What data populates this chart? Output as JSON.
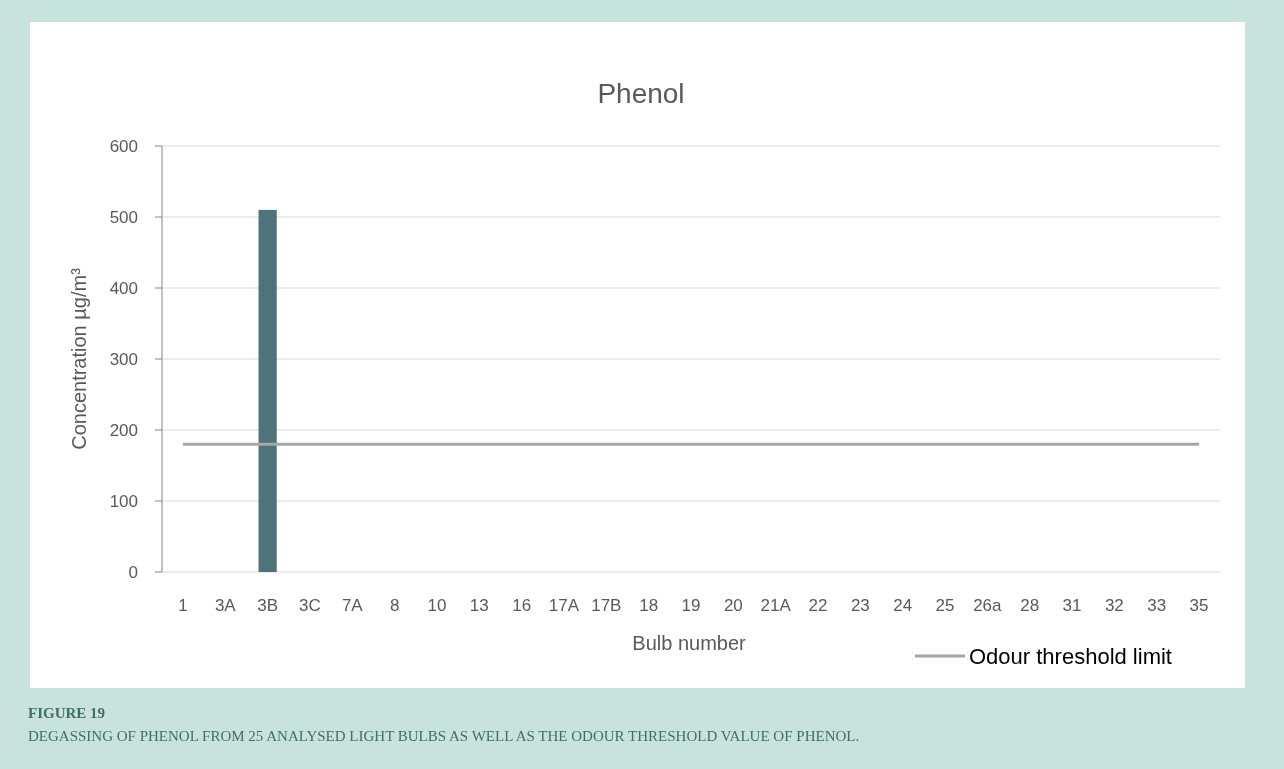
{
  "chart_data": {
    "type": "bar",
    "title": "Phenol",
    "xlabel": "Bulb number",
    "ylabel": "Concentration µg/m³",
    "categories": [
      "1",
      "3A",
      "3B",
      "3C",
      "7A",
      "8",
      "10",
      "13",
      "16",
      "17A",
      "17B",
      "18",
      "19",
      "20",
      "21A",
      "22",
      "23",
      "24",
      "25",
      "26a",
      "28",
      "31",
      "32",
      "33",
      "35"
    ],
    "series": [
      {
        "color": "#4e737a",
        "values": [
          null,
          null,
          510,
          null,
          null,
          null,
          null,
          null,
          null,
          null,
          null,
          null,
          null,
          null,
          null,
          null,
          null,
          null,
          null,
          null,
          null,
          null,
          null,
          null,
          null
        ]
      },
      {
        "type": "line",
        "name": "Odour threshold limit",
        "color": "#a6a6a6",
        "values": [
          180,
          180,
          180,
          180,
          180,
          180,
          180,
          180,
          180,
          180,
          180,
          180,
          180,
          180,
          180,
          180,
          180,
          180,
          180,
          180,
          180,
          180,
          180,
          180,
          180
        ]
      }
    ],
    "ylim": [
      0,
      600
    ],
    "yticks": [
      0,
      100,
      200,
      300,
      400,
      500,
      600
    ],
    "grid": "y",
    "legend": "bottom right",
    "marker": "none",
    "annotations": [
      "FIGURE 19",
      "DEGASSING OF PHENOL FROM 25 ANALYSED LIGHT BULBS AS WELL AS THE ODOUR THRESHOLD VALUE OF PHENOL."
    ]
  }
}
